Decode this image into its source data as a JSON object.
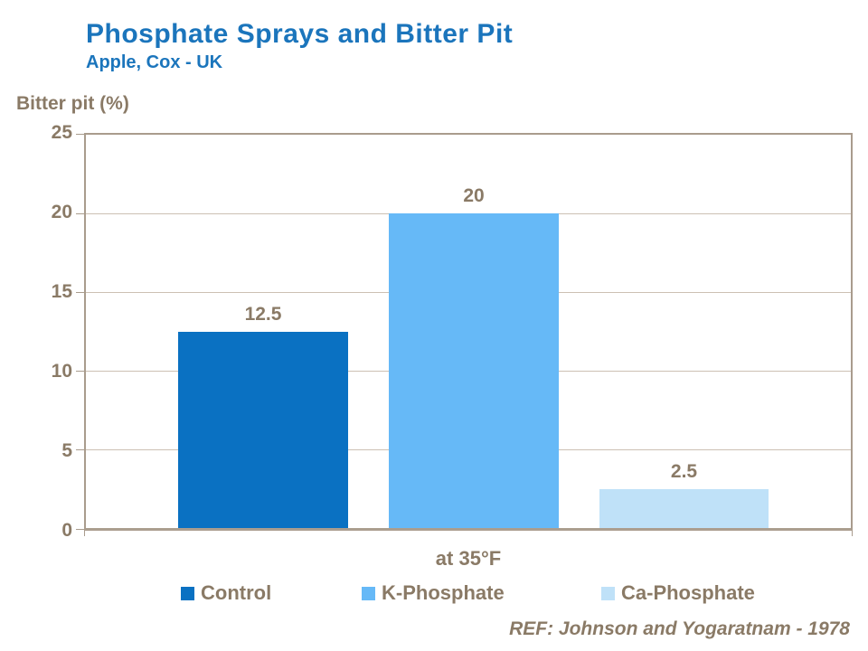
{
  "header": {
    "title": "Phosphate Sprays and Bitter Pit",
    "subtitle": "Apple, Cox - UK"
  },
  "footer": {
    "reference": "REF: Johnson and Yogaratnam - 1978"
  },
  "colors": {
    "title_blue": "#1B75BC",
    "text_brown": "#8A7A66",
    "axis_line": "#A99C8D",
    "gridline": "#CCC0B3",
    "series_control": "#0A71C2",
    "series_k_phosphate": "#66B9F7",
    "series_ca_phosphate": "#BFE1F8"
  },
  "chart_data": {
    "type": "bar",
    "title": "Phosphate Sprays and Bitter Pit",
    "subtitle": "Apple, Cox - UK",
    "ylabel": "Bitter pit (%)",
    "xlabel": "",
    "categories": [
      "at 35°F"
    ],
    "series": [
      {
        "name": "Control",
        "values": [
          12.5
        ],
        "color": "#0A71C2"
      },
      {
        "name": "K-Phosphate",
        "values": [
          20
        ],
        "color": "#66B9F7"
      },
      {
        "name": "Ca-Phosphate",
        "values": [
          2.5
        ],
        "color": "#BFE1F8"
      }
    ],
    "data_labels": [
      12.5,
      20,
      2.5
    ],
    "ylim": [
      0,
      25
    ],
    "yticks": [
      0,
      5,
      10,
      15,
      20,
      25
    ],
    "grid": true,
    "legend_position": "bottom"
  },
  "legend": {
    "items": [
      {
        "label": "Control"
      },
      {
        "label": "K-Phosphate"
      },
      {
        "label": "Ca-Phosphate"
      }
    ]
  }
}
